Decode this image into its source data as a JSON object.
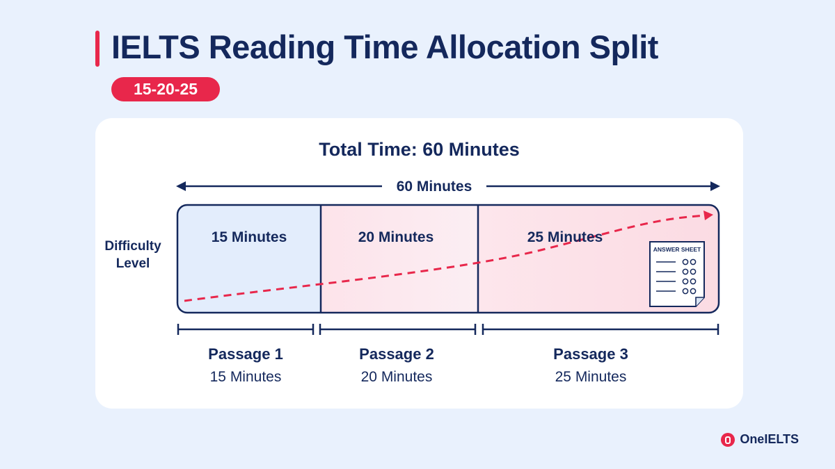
{
  "header": {
    "title": "IELTS Reading Time Allocation Split",
    "badge": "15-20-25"
  },
  "card": {
    "total_label": "Total Time: 60 Minutes",
    "span_label": "60 Minutes",
    "axis_label": "Difficulty Level",
    "answer_sheet_label": "ANSWER SHEET"
  },
  "passages": [
    {
      "name": "Passage 1",
      "minutes": 15,
      "minutes_label": "15 Minutes"
    },
    {
      "name": "Passage 2",
      "minutes": 20,
      "minutes_label": "20 Minutes"
    },
    {
      "name": "Passage 3",
      "minutes": 25,
      "minutes_label": "25 Minutes"
    }
  ],
  "colors": {
    "navy": "#14285c",
    "accent_red": "#e8274b",
    "background": "#e9f1fd",
    "segment_1": "#e3edfc",
    "segment_2": "#fdeaef",
    "segment_3": "#fce3e9"
  },
  "brand": {
    "name": "OneIELTS"
  }
}
